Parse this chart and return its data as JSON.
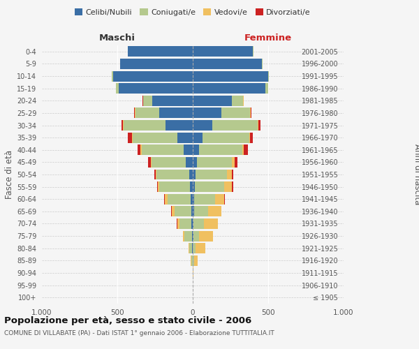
{
  "age_groups": [
    "100+",
    "95-99",
    "90-94",
    "85-89",
    "80-84",
    "75-79",
    "70-74",
    "65-69",
    "60-64",
    "55-59",
    "50-54",
    "45-49",
    "40-44",
    "35-39",
    "30-34",
    "25-29",
    "20-24",
    "15-19",
    "10-14",
    "5-9",
    "0-4"
  ],
  "birth_years": [
    "≤ 1905",
    "1906-1910",
    "1911-1915",
    "1916-1920",
    "1921-1925",
    "1926-1930",
    "1931-1935",
    "1936-1940",
    "1941-1945",
    "1946-1950",
    "1951-1955",
    "1956-1960",
    "1961-1965",
    "1966-1970",
    "1971-1975",
    "1976-1980",
    "1981-1985",
    "1986-1990",
    "1991-1995",
    "1996-2000",
    "2001-2005"
  ],
  "male": {
    "celibi": [
      0,
      0,
      0,
      2,
      3,
      5,
      8,
      10,
      15,
      20,
      25,
      45,
      60,
      100,
      180,
      220,
      270,
      490,
      530,
      480,
      430
    ],
    "coniugati": [
      0,
      0,
      2,
      8,
      20,
      50,
      80,
      110,
      150,
      200,
      215,
      230,
      280,
      300,
      280,
      160,
      60,
      20,
      5,
      2,
      1
    ],
    "vedovi": [
      0,
      0,
      0,
      2,
      5,
      10,
      15,
      20,
      20,
      10,
      5,
      5,
      5,
      5,
      2,
      2,
      1,
      0,
      0,
      0,
      0
    ],
    "divorziati": [
      0,
      0,
      0,
      0,
      0,
      0,
      2,
      2,
      3,
      8,
      10,
      15,
      20,
      25,
      10,
      5,
      2,
      0,
      0,
      0,
      0
    ]
  },
  "female": {
    "nubili": [
      0,
      0,
      0,
      2,
      2,
      3,
      5,
      8,
      10,
      12,
      18,
      30,
      40,
      65,
      130,
      190,
      260,
      480,
      500,
      460,
      400
    ],
    "coniugate": [
      0,
      0,
      2,
      5,
      15,
      40,
      70,
      95,
      140,
      195,
      210,
      230,
      290,
      310,
      300,
      190,
      75,
      20,
      5,
      2,
      1
    ],
    "vedove": [
      0,
      0,
      2,
      25,
      65,
      90,
      90,
      85,
      60,
      50,
      30,
      20,
      10,
      5,
      3,
      2,
      1,
      0,
      0,
      0,
      0
    ],
    "divorziate": [
      0,
      0,
      0,
      0,
      0,
      0,
      2,
      3,
      5,
      10,
      12,
      18,
      25,
      20,
      15,
      5,
      2,
      0,
      0,
      0,
      0
    ]
  },
  "colors": {
    "celibi": "#3a6ea5",
    "coniugati": "#b5c98e",
    "vedovi": "#f0c060",
    "divorziati": "#cc2222"
  },
  "xlim": 1000,
  "title": "Popolazione per età, sesso e stato civile - 2006",
  "subtitle": "COMUNE DI VILLABATE (PA) - Dati ISTAT 1° gennaio 2006 - Elaborazione TUTTITALIA.IT",
  "ylabel_left": "Fasce di età",
  "ylabel_right": "Anni di nascita",
  "xlabel_left": "Maschi",
  "xlabel_right": "Femmine",
  "legend_labels": [
    "Celibi/Nubili",
    "Coniugati/e",
    "Vedovi/e",
    "Divorziati/e"
  ],
  "background_color": "#f5f5f5"
}
